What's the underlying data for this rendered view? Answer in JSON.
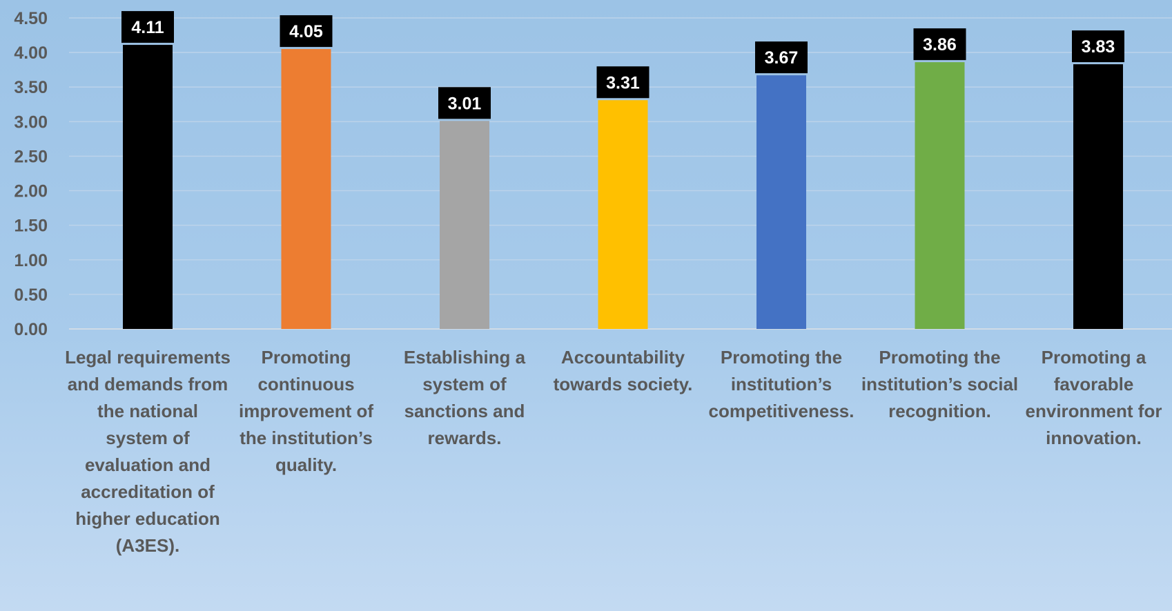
{
  "chart_data": {
    "type": "bar",
    "title": "",
    "xlabel": "",
    "ylabel": "",
    "ylim": [
      0,
      4.5
    ],
    "yticks": [
      "0.00",
      "0.50",
      "1.00",
      "1.50",
      "2.00",
      "2.50",
      "3.00",
      "3.50",
      "4.00",
      "4.50"
    ],
    "grid": true,
    "legend": "none",
    "categories": [
      "Legal requirements and demands from the national system of evaluation and accreditation of higher education (A3ES).",
      "Promoting continuous improvement of the institution’s quality.",
      "Establishing a system of sanctions and rewards.",
      "Accountability towards society.",
      "Promoting the institution’s competitiveness.",
      "Promoting the institution’s social recognition.",
      "Promoting a favorable environment for innovation."
    ],
    "values": [
      4.11,
      4.05,
      3.01,
      3.31,
      3.67,
      3.86,
      3.83
    ],
    "data_labels": [
      "4.11",
      "4.05",
      "3.01",
      "3.31",
      "3.67",
      "3.86",
      "3.83"
    ],
    "colors": [
      "#000000",
      "#ed7d31",
      "#a5a5a5",
      "#ffc000",
      "#4472c4",
      "#70ad47",
      "#000000"
    ]
  }
}
